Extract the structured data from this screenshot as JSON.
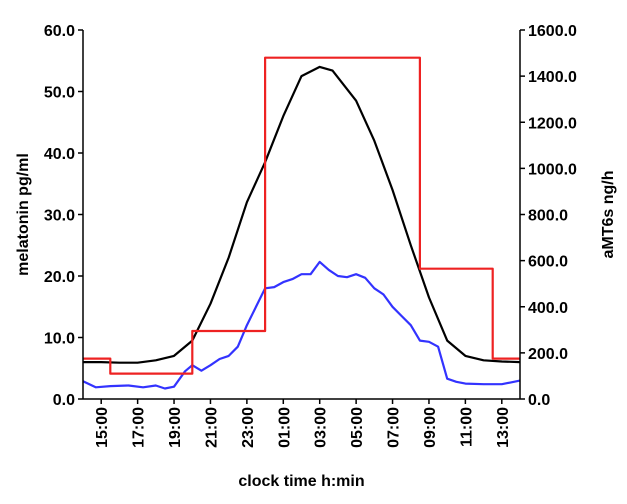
{
  "chart_data": {
    "type": "line",
    "x_label": "clock time h:min",
    "y_left_label": "melatonin pg/ml",
    "y_right_label": "aMT6s ng/h",
    "x_range": [
      14.0,
      38.0
    ],
    "y_left_range": [
      0,
      60
    ],
    "y_right_range": [
      0,
      1600
    ],
    "x_ticks": [
      {
        "value": 15,
        "label": "15:00"
      },
      {
        "value": 17,
        "label": "17:00"
      },
      {
        "value": 19,
        "label": "19:00"
      },
      {
        "value": 21,
        "label": "21:00"
      },
      {
        "value": 23,
        "label": "23:00"
      },
      {
        "value": 25,
        "label": "01:00"
      },
      {
        "value": 27,
        "label": "03:00"
      },
      {
        "value": 29,
        "label": "05:00"
      },
      {
        "value": 31,
        "label": "07:00"
      },
      {
        "value": 33,
        "label": "09:00"
      },
      {
        "value": 35,
        "label": "11:00"
      },
      {
        "value": 37,
        "label": "13:00"
      }
    ],
    "y_left_ticks": [
      {
        "value": 0,
        "label": "0.0"
      },
      {
        "value": 10,
        "label": "10.0"
      },
      {
        "value": 20,
        "label": "20.0"
      },
      {
        "value": 30,
        "label": "30.0"
      },
      {
        "value": 40,
        "label": "40.0"
      },
      {
        "value": 50,
        "label": "50.0"
      },
      {
        "value": 60,
        "label": "60.0"
      }
    ],
    "y_right_ticks": [
      {
        "value": 0,
        "label": "0.0"
      },
      {
        "value": 200,
        "label": "200.0"
      },
      {
        "value": 400,
        "label": "400.0"
      },
      {
        "value": 600,
        "label": "600.0"
      },
      {
        "value": 800,
        "label": "800.0"
      },
      {
        "value": 1000,
        "label": "1000.0"
      },
      {
        "value": 1200,
        "label": "1200.0"
      },
      {
        "value": 1400,
        "label": "1400.0"
      },
      {
        "value": 1600,
        "label": "1600.0"
      }
    ],
    "series": [
      {
        "color": "#000000",
        "axis": "left",
        "points": [
          [
            14,
            6.0
          ],
          [
            15,
            6.0
          ],
          [
            16,
            5.9
          ],
          [
            17,
            5.9
          ],
          [
            18,
            6.3
          ],
          [
            19,
            7.0
          ],
          [
            20,
            9.5
          ],
          [
            21,
            15.5
          ],
          [
            22,
            23.0
          ],
          [
            23,
            32.0
          ],
          [
            24,
            38.5
          ],
          [
            25,
            46.0
          ],
          [
            26,
            52.5
          ],
          [
            27,
            54.0
          ],
          [
            27.7,
            53.4
          ],
          [
            29,
            48.5
          ],
          [
            30,
            42.0
          ],
          [
            31,
            34.0
          ],
          [
            32,
            25.0
          ],
          [
            33,
            16.5
          ],
          [
            34,
            9.5
          ],
          [
            35,
            7.0
          ],
          [
            36,
            6.3
          ],
          [
            37,
            6.1
          ],
          [
            38,
            6.0
          ]
        ]
      },
      {
        "color": "#3333ff",
        "axis": "left",
        "points": [
          [
            14,
            2.9
          ],
          [
            14.7,
            1.9
          ],
          [
            15.5,
            2.1
          ],
          [
            16.5,
            2.2
          ],
          [
            17.3,
            1.9
          ],
          [
            18,
            2.2
          ],
          [
            18.5,
            1.7
          ],
          [
            19,
            2.0
          ],
          [
            19.6,
            4.5
          ],
          [
            20,
            5.5
          ],
          [
            20.5,
            4.6
          ],
          [
            21,
            5.5
          ],
          [
            21.5,
            6.5
          ],
          [
            22,
            7.0
          ],
          [
            22.5,
            8.5
          ],
          [
            23,
            12.0
          ],
          [
            23.5,
            15.0
          ],
          [
            24,
            18.0
          ],
          [
            24.5,
            18.2
          ],
          [
            25,
            19.0
          ],
          [
            25.5,
            19.5
          ],
          [
            26,
            20.3
          ],
          [
            26.5,
            20.3
          ],
          [
            27,
            22.3
          ],
          [
            27.5,
            21.0
          ],
          [
            28,
            20.0
          ],
          [
            28.5,
            19.8
          ],
          [
            29,
            20.3
          ],
          [
            29.5,
            19.7
          ],
          [
            30,
            18.0
          ],
          [
            30.5,
            17.0
          ],
          [
            31,
            15.0
          ],
          [
            31.5,
            13.5
          ],
          [
            32,
            12.0
          ],
          [
            32.5,
            9.5
          ],
          [
            33,
            9.3
          ],
          [
            33.5,
            8.5
          ],
          [
            34,
            3.3
          ],
          [
            34.5,
            2.8
          ],
          [
            35,
            2.5
          ],
          [
            36,
            2.4
          ],
          [
            37,
            2.4
          ],
          [
            37.5,
            2.7
          ],
          [
            38,
            3.0
          ]
        ]
      },
      {
        "color": "#ee2222",
        "axis": "right",
        "points": [
          [
            14,
            175
          ],
          [
            15.5,
            175
          ],
          [
            15.5,
            110
          ],
          [
            20,
            110
          ],
          [
            20,
            295
          ],
          [
            24,
            295
          ],
          [
            24,
            1480
          ],
          [
            32.5,
            1480
          ],
          [
            32.5,
            565
          ],
          [
            36.5,
            565
          ],
          [
            36.5,
            175
          ],
          [
            38,
            175
          ]
        ]
      }
    ]
  }
}
